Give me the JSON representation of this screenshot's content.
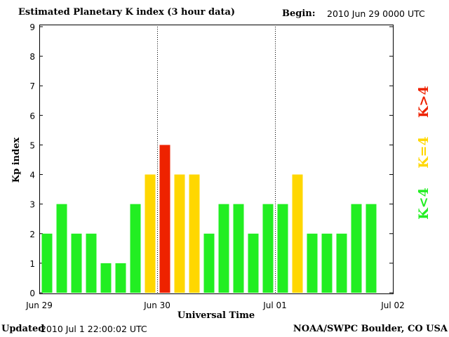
{
  "header": {
    "title": "Estimated Planetary K index (3 hour data)",
    "begin_label": "Begin:",
    "begin_value": "2010 Jun 29 0000 UTC"
  },
  "footer": {
    "updated_label": "Updated",
    "updated_value": "2010 Jul  1 22:00:02 UTC",
    "credit": "NOAA/SWPC Boulder, CO USA"
  },
  "legend": [
    {
      "label": "K<4",
      "color": "#22ee22"
    },
    {
      "label": "K=4",
      "color": "#ffd700"
    },
    {
      "label": "K>4",
      "color": "#ee2200"
    }
  ],
  "colors": {
    "low": "#22ee22",
    "moderate": "#ffd700",
    "high": "#ee2200"
  },
  "chart_data": {
    "type": "bar",
    "title": "Estimated Planetary K index (3 hour data)",
    "xlabel": "Universal Time",
    "ylabel": "Kp index",
    "ylim": [
      0,
      9
    ],
    "yticks": [
      0,
      1,
      2,
      3,
      4,
      5,
      6,
      7,
      8,
      9
    ],
    "x_ticks": [
      "Jun 29",
      "Jun 30",
      "Jul 01",
      "Jul 02"
    ],
    "day_dividers": [
      "Jun 30",
      "Jul 01"
    ],
    "interval_hours": 3,
    "values": [
      2,
      3,
      2,
      2,
      1,
      1,
      3,
      4,
      5,
      4,
      4,
      2,
      3,
      3,
      2,
      3,
      3,
      4,
      2,
      2,
      2,
      3,
      3
    ],
    "color_rule": {
      "K<4": "#22ee22",
      "K=4": "#ffd700",
      "K>4": "#ee2200"
    }
  }
}
